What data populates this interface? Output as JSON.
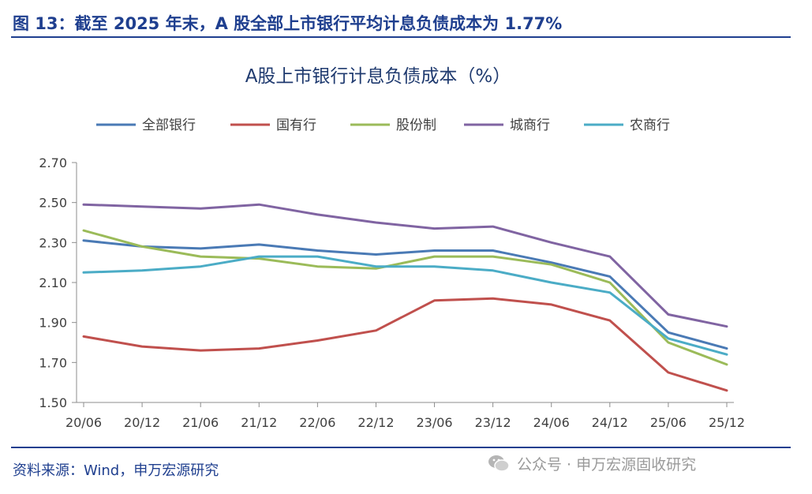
{
  "figure_title": "图 13：截至 2025 年末，A 股全部上市银行平均计息负债成本为 1.77%",
  "source_note": "资料来源：Wind，申万宏源研究",
  "watermark": "公众号 · 申万宏源固收研究",
  "chart_data": {
    "type": "line",
    "title": "A股上市银行计息负债成本（%）",
    "categories": [
      "20/06",
      "20/12",
      "21/06",
      "21/12",
      "22/06",
      "22/12",
      "23/06",
      "23/12",
      "24/06",
      "24/12",
      "25/06",
      "25/12"
    ],
    "ylim": [
      1.5,
      2.7
    ],
    "yticks": [
      "1.50",
      "1.70",
      "1.90",
      "2.10",
      "2.30",
      "2.50",
      "2.70"
    ],
    "legend_position": "top",
    "series": [
      {
        "name": "全部银行",
        "color": "#4a7ab5",
        "values": [
          2.31,
          2.28,
          2.27,
          2.29,
          2.26,
          2.24,
          2.26,
          2.26,
          2.2,
          2.13,
          1.85,
          1.77
        ]
      },
      {
        "name": "国有行",
        "color": "#c0504d",
        "values": [
          1.83,
          1.78,
          1.76,
          1.77,
          1.81,
          1.86,
          2.01,
          2.02,
          1.99,
          1.91,
          1.65,
          1.56
        ]
      },
      {
        "name": "股份制",
        "color": "#9bbb59",
        "values": [
          2.36,
          2.28,
          2.23,
          2.22,
          2.18,
          2.17,
          2.23,
          2.23,
          2.19,
          2.1,
          1.8,
          1.69
        ]
      },
      {
        "name": "城商行",
        "color": "#8064a2",
        "values": [
          2.49,
          2.48,
          2.47,
          2.49,
          2.44,
          2.4,
          2.37,
          2.38,
          2.3,
          2.23,
          1.94,
          1.88
        ]
      },
      {
        "name": "农商行",
        "color": "#4bacc6",
        "values": [
          2.15,
          2.16,
          2.18,
          2.23,
          2.23,
          2.18,
          2.18,
          2.16,
          2.1,
          2.05,
          1.82,
          1.74
        ]
      }
    ]
  }
}
